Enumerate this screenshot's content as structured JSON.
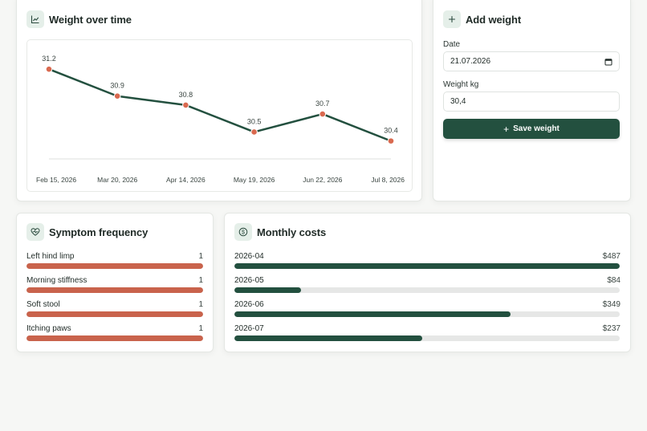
{
  "weight_card": {
    "title": "Weight over time",
    "icon": "line-chart-icon"
  },
  "chart_data": {
    "type": "line",
    "x": [
      "Feb 15, 2026",
      "Mar 20, 2026",
      "Apr 14, 2026",
      "May 19, 2026",
      "Jun 22, 2026",
      "Jul 8, 2026"
    ],
    "series": [
      {
        "values": [
          31.2,
          30.9,
          30.8,
          30.5,
          30.7,
          30.4
        ]
      }
    ],
    "data_labels": [
      "31.2",
      "30.9",
      "30.8",
      "30.5",
      "30.7",
      "30.4"
    ],
    "ylim": [
      30.2,
      31.3
    ],
    "grid": false,
    "line_color": "#23503f",
    "point_color": "#d9694f"
  },
  "add_weight": {
    "title": "Add weight",
    "icon": "plus-icon",
    "date_label": "Date",
    "date_value": "21.07.2026",
    "weight_label": "Weight kg",
    "weight_value": "30,4",
    "save_label": "Save weight"
  },
  "symptoms": {
    "title": "Symptom frequency",
    "icon": "heart-pulse-icon",
    "max": 1,
    "items": [
      {
        "label": "Left hind limp",
        "value": 1
      },
      {
        "label": "Morning stiffness",
        "value": 1
      },
      {
        "label": "Soft stool",
        "value": 1
      },
      {
        "label": "Itching paws",
        "value": 1
      }
    ]
  },
  "costs": {
    "title": "Monthly costs",
    "icon": "dollar-circle-icon",
    "max": 487,
    "items": [
      {
        "label": "2026-04",
        "value": 487,
        "display": "$487"
      },
      {
        "label": "2026-05",
        "value": 84,
        "display": "$84"
      },
      {
        "label": "2026-06",
        "value": 349,
        "display": "$349"
      },
      {
        "label": "2026-07",
        "value": 237,
        "display": "$237"
      }
    ]
  },
  "colors": {
    "accent": "#23503f",
    "bar_red": "#c9634c",
    "track": "#e6e7e6"
  }
}
